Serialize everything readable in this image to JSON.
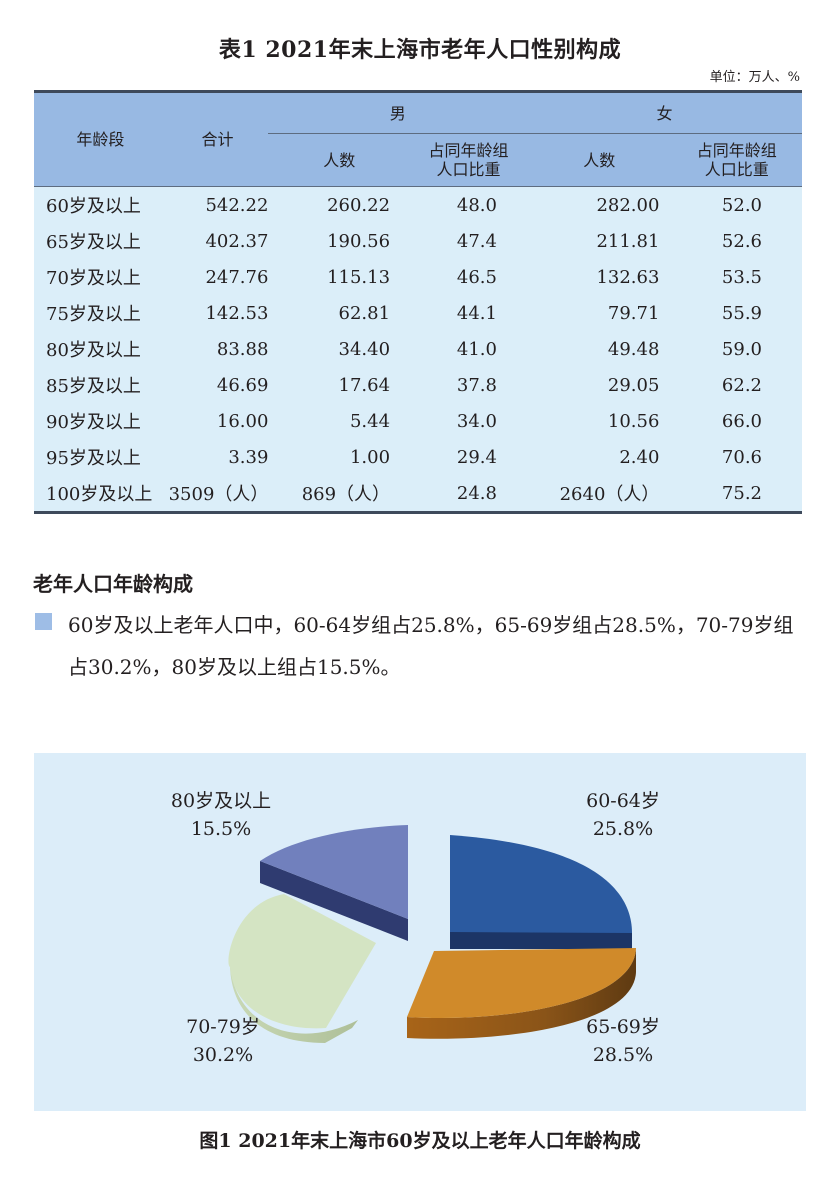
{
  "table": {
    "title": "表1  2021年末上海市老年人口性别构成",
    "unit": "单位：万人、%",
    "headers": {
      "age_group": "年龄段",
      "total": "合计",
      "male": "男",
      "female": "女",
      "count": "人数",
      "share_line1": "占同年龄组",
      "share_line2": "人口比重"
    },
    "rows": [
      {
        "age": "60岁及以上",
        "total": "542.22",
        "male_count": "260.22",
        "male_pct": "48.0",
        "female_count": "282.00",
        "female_pct": "52.0"
      },
      {
        "age": "65岁及以上",
        "total": "402.37",
        "male_count": "190.56",
        "male_pct": "47.4",
        "female_count": "211.81",
        "female_pct": "52.6"
      },
      {
        "age": "70岁及以上",
        "total": "247.76",
        "male_count": "115.13",
        "male_pct": "46.5",
        "female_count": "132.63",
        "female_pct": "53.5"
      },
      {
        "age": "75岁及以上",
        "total": "142.53",
        "male_count": "62.81",
        "male_pct": "44.1",
        "female_count": "79.71",
        "female_pct": "55.9"
      },
      {
        "age": "80岁及以上",
        "total": "83.88",
        "male_count": "34.40",
        "male_pct": "41.0",
        "female_count": "49.48",
        "female_pct": "59.0"
      },
      {
        "age": "85岁及以上",
        "total": "46.69",
        "male_count": "17.64",
        "male_pct": "37.8",
        "female_count": "29.05",
        "female_pct": "62.2"
      },
      {
        "age": "90岁及以上",
        "total": "16.00",
        "male_count": "5.44",
        "male_pct": "34.0",
        "female_count": "10.56",
        "female_pct": "66.0"
      },
      {
        "age": "95岁及以上",
        "total": "3.39",
        "male_count": "1.00",
        "male_pct": "29.4",
        "female_count": "2.40",
        "female_pct": "70.6"
      },
      {
        "age": "100岁及以上",
        "total": "3509（人）",
        "male_count": "869（人）",
        "male_pct": "24.8",
        "female_count": "2640（人）",
        "female_pct": "75.2"
      }
    ]
  },
  "section": {
    "title": "老年人口年龄构成",
    "paragraph": "60岁及以上老年人口中，60-64岁组占25.8%，65-69岁组占28.5%，70-79岁组占30.2%，80岁及以上组占15.5%。"
  },
  "figure": {
    "caption": "图1  2021年末上海市60岁及以上老年人口年龄构成",
    "labels": [
      {
        "name": "60-64岁",
        "value": "25.8%"
      },
      {
        "name": "65-69岁",
        "value": "28.5%"
      },
      {
        "name": "70-79岁",
        "value": "30.2%"
      },
      {
        "name": "80岁及以上",
        "value": "15.5%"
      }
    ]
  },
  "colors": {
    "header_bg": "#98b9e3",
    "body_bg": "#dbeef9",
    "slice_60_64": "#2b5aa0",
    "slice_65_69": "#d08a2a",
    "slice_70_79": "#d4e4c3",
    "slice_80_plus": "#7180bd"
  },
  "chart_data": [
    {
      "type": "table",
      "title": "表1  2021年末上海市老年人口性别构成",
      "unit": "万人、%",
      "columns": [
        "年龄段",
        "合计",
        "男-人数",
        "男-占同年龄组人口比重",
        "女-人数",
        "女-占同年龄组人口比重"
      ],
      "rows": [
        [
          "60岁及以上",
          542.22,
          260.22,
          48.0,
          282.0,
          52.0
        ],
        [
          "65岁及以上",
          402.37,
          190.56,
          47.4,
          211.81,
          52.6
        ],
        [
          "70岁及以上",
          247.76,
          115.13,
          46.5,
          132.63,
          53.5
        ],
        [
          "75岁及以上",
          142.53,
          62.81,
          44.1,
          79.71,
          55.9
        ],
        [
          "80岁及以上",
          83.88,
          34.4,
          41.0,
          49.48,
          59.0
        ],
        [
          "85岁及以上",
          46.69,
          17.64,
          37.8,
          29.05,
          62.2
        ],
        [
          "90岁及以上",
          16.0,
          5.44,
          34.0,
          10.56,
          66.0
        ],
        [
          "95岁及以上",
          3.39,
          1.0,
          29.4,
          2.4,
          70.6
        ],
        [
          "100岁及以上",
          "3509(人)",
          "869(人)",
          24.8,
          "2640(人)",
          75.2
        ]
      ]
    },
    {
      "type": "pie",
      "title": "图1  2021年末上海市60岁及以上老年人口年龄构成",
      "categories": [
        "60-64岁",
        "65-69岁",
        "70-79岁",
        "80岁及以上"
      ],
      "values": [
        25.8,
        28.5,
        30.2,
        15.5
      ],
      "unit": "%",
      "style": "3d-exploded",
      "legend": "inline labels"
    }
  ]
}
